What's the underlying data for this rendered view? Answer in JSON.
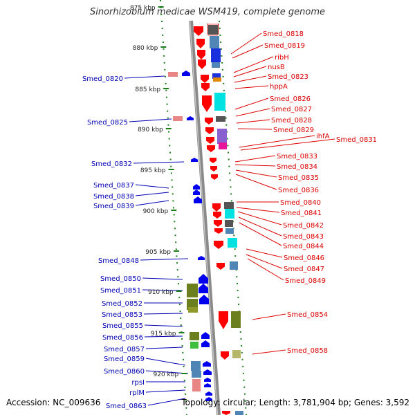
{
  "title": "Sinorhizobium medicae WSM419, complete genome",
  "footer": {
    "accession": "Accession: NC_009636",
    "topology": "Topology: circular; Length: 3,781,904 bp; Genes: 3,592"
  },
  "colors": {
    "backbone": "#8c8c8c",
    "tick": "#1a7d1a",
    "label_right": "#dd0000",
    "label_left": "#0000b4",
    "forward_gene": "#ff0000",
    "reverse_gene": "#0000ee"
  },
  "kbp_ticks": [
    "875 kbp",
    "880 kbp",
    "885 kbp",
    "890 kbp",
    "895 kbp",
    "900 kbp",
    "905 kbp",
    "910 kbp",
    "915 kbp",
    "920 kbp"
  ],
  "right_labels": [
    "Smed_0818",
    "Smed_0819",
    "ribH",
    "nusB",
    "Smed_0823",
    "hppA",
    "Smed_0826",
    "Smed_0827",
    "Smed_0828",
    "Smed_0829",
    "ihfA",
    "Smed_0831",
    "Smed_0833",
    "Smed_0834",
    "Smed_0835",
    "Smed_0836",
    "Smed_0840",
    "Smed_0841",
    "Smed_0842",
    "Smed_0843",
    "Smed_0844",
    "Smed_0846",
    "Smed_0847",
    "Smed_0849",
    "Smed_0854",
    "Smed_0858"
  ],
  "left_labels": [
    "Smed_0820",
    "Smed_0825",
    "Smed_0832",
    "Smed_0837",
    "Smed_0838",
    "Smed_0839",
    "Smed_0848",
    "Smed_0850",
    "Smed_0851",
    "Smed_0852",
    "Smed_0853",
    "Smed_0855",
    "Smed_0856",
    "Smed_0857",
    "Smed_0859",
    "Smed_0860",
    "rpsI",
    "rplM",
    "Smed_0863"
  ]
}
